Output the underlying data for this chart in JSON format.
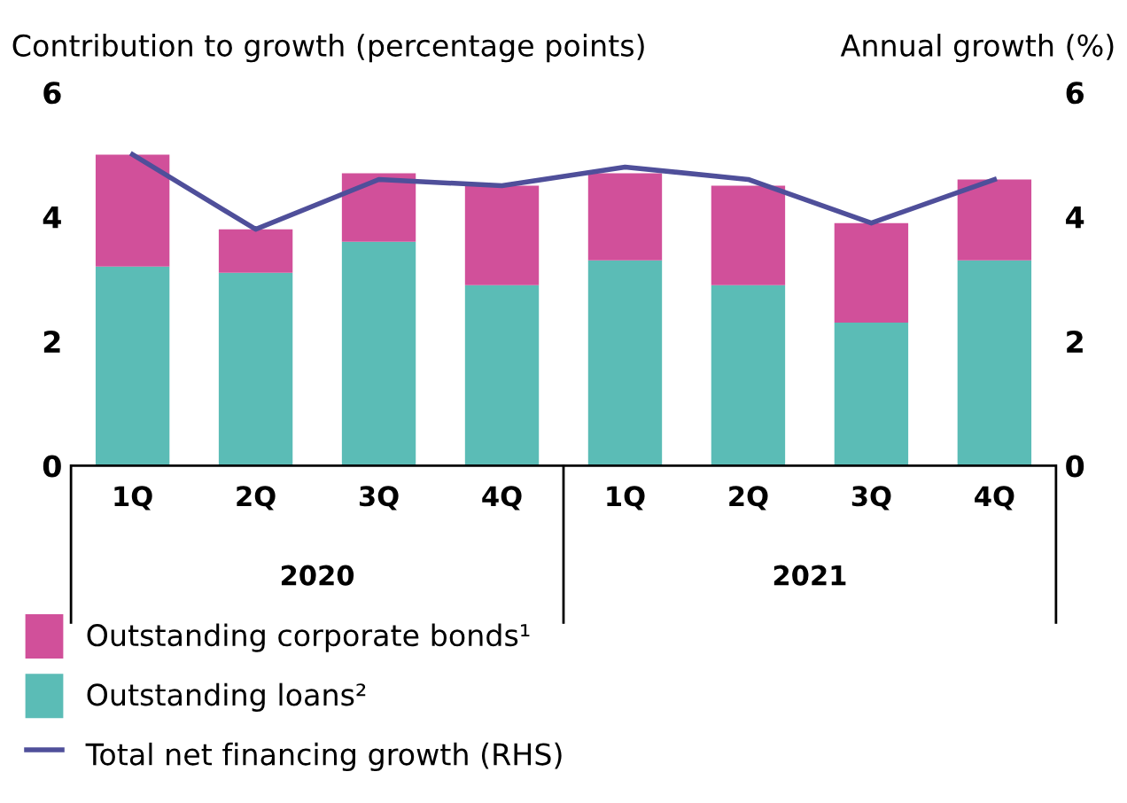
{
  "chart_data": {
    "type": "bar",
    "stacked": true,
    "categories": [
      "1Q",
      "2Q",
      "3Q",
      "4Q",
      "1Q",
      "2Q",
      "3Q",
      "4Q"
    ],
    "series": [
      {
        "name": "Outstanding loans²",
        "color": "#5bbcb6",
        "values": [
          3.2,
          3.1,
          3.6,
          2.9,
          3.3,
          2.9,
          2.3,
          3.3
        ]
      },
      {
        "name": "Outstanding corporate bonds¹",
        "color": "#d1509a",
        "values": [
          1.8,
          0.7,
          1.1,
          1.6,
          1.4,
          1.6,
          1.6,
          1.3
        ]
      },
      {
        "name": "Total net financing growth (RHS)",
        "type": "line",
        "axis": "y2",
        "color": "#4f4f9a",
        "values": [
          5.0,
          3.8,
          4.6,
          4.5,
          4.8,
          4.6,
          3.9,
          4.6
        ]
      }
    ],
    "ylabel": "Contribution to growth (percentage points)",
    "y2label": "Annual growth (%)",
    "ylim": [
      0,
      6
    ],
    "yticks": [
      0,
      2,
      4,
      6
    ],
    "y2lim": [
      0,
      6
    ],
    "y2ticks": [
      0,
      2,
      4,
      6
    ],
    "annotations": [
      "2020",
      "2021"
    ],
    "grid": false,
    "legend": "bottom"
  }
}
